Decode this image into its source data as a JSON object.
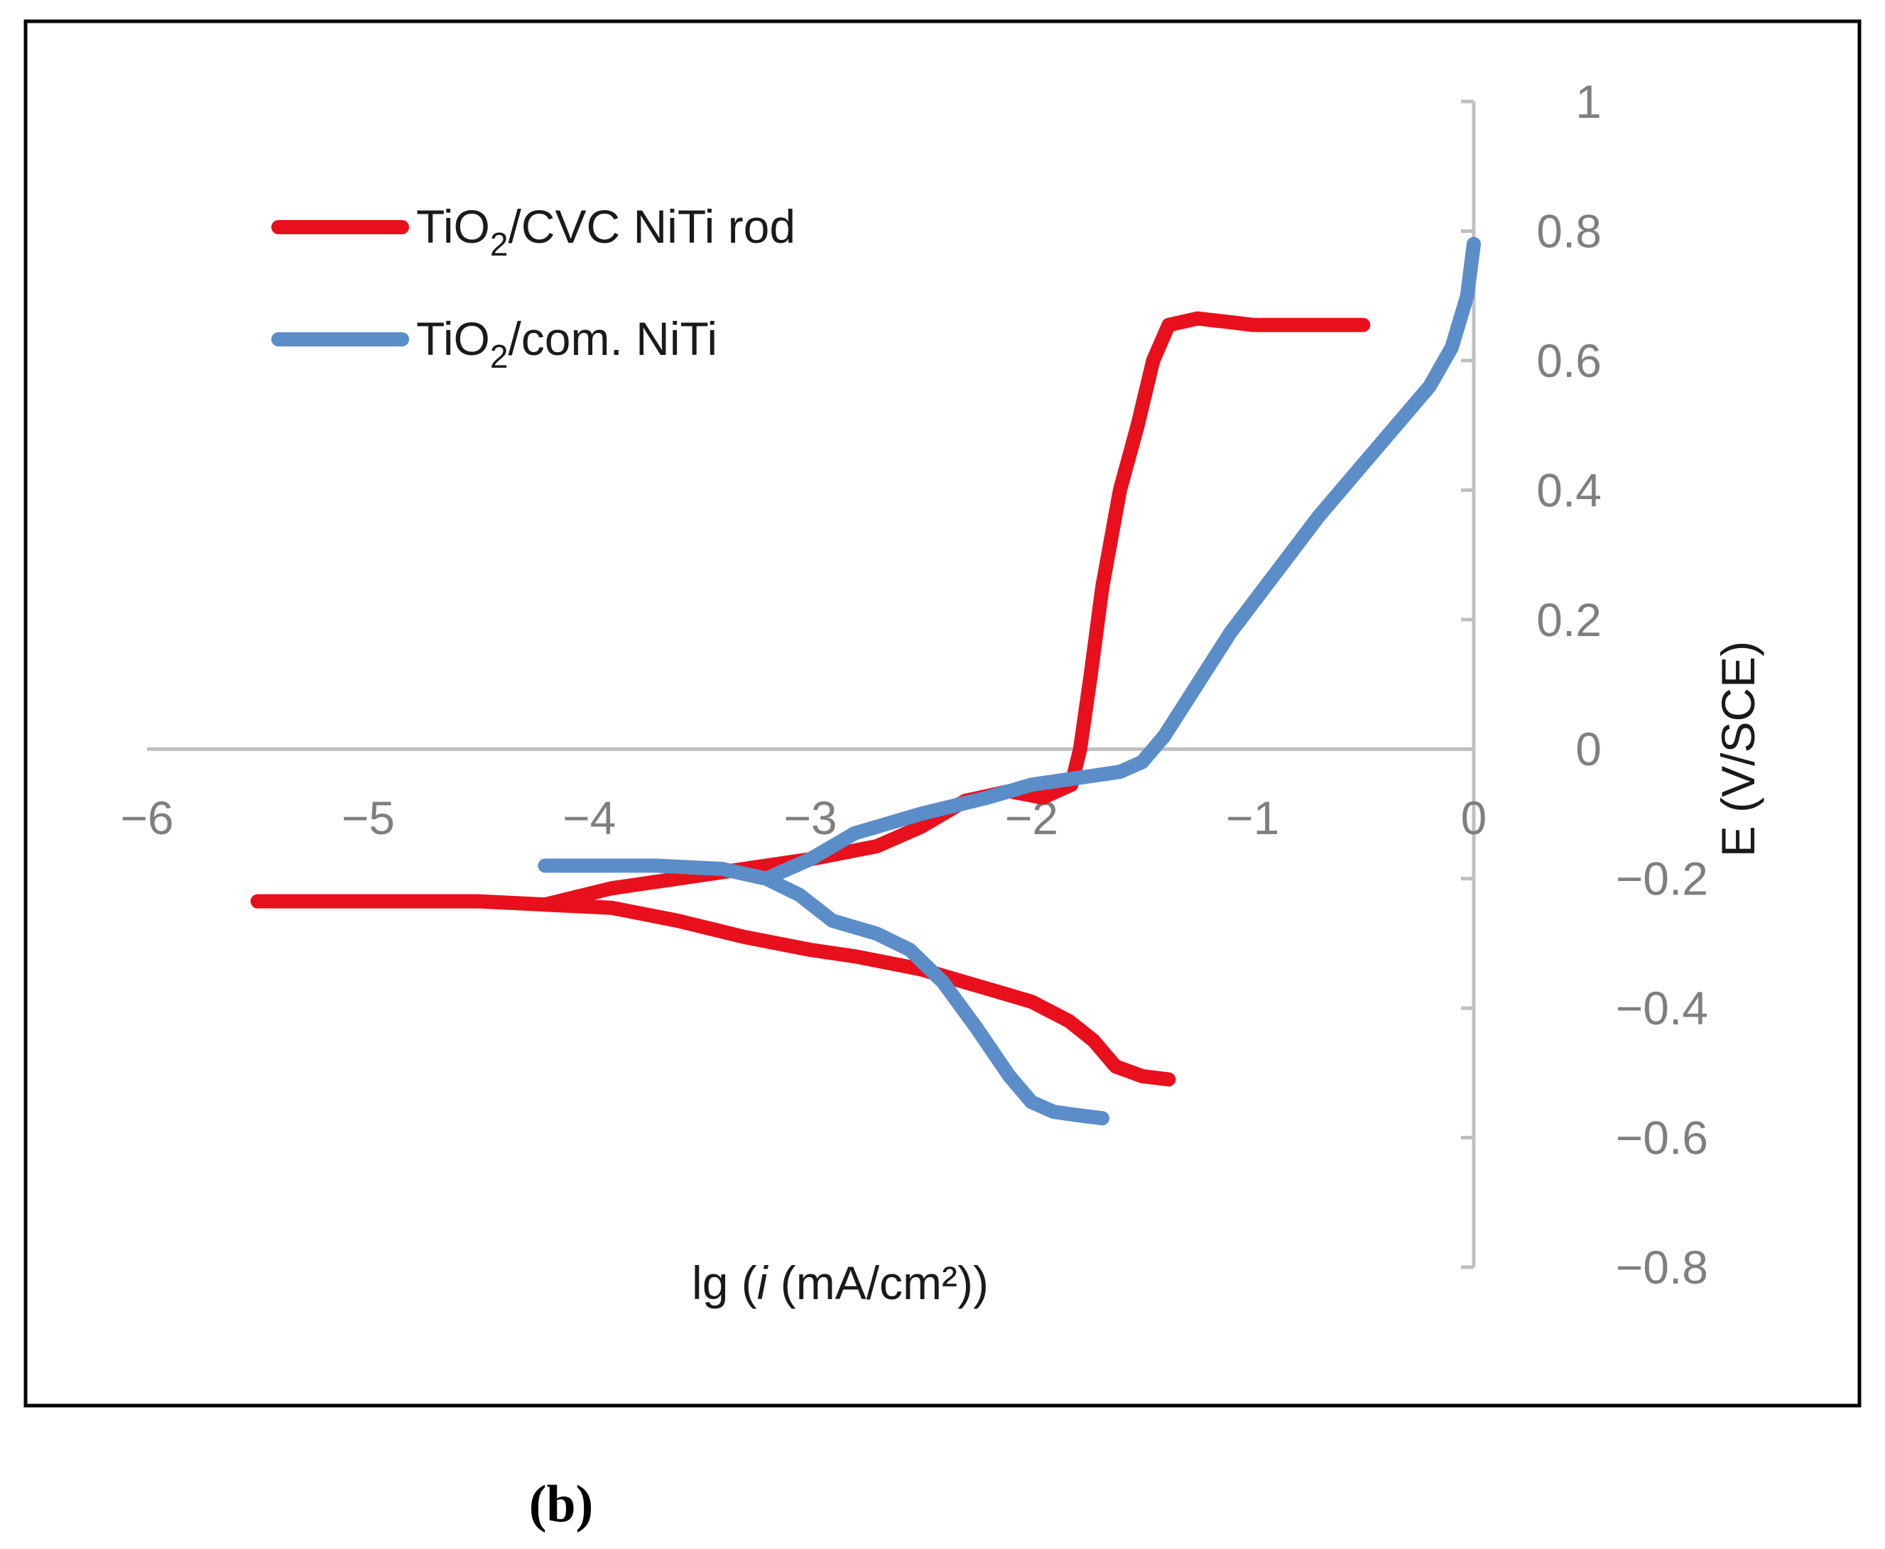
{
  "chart_data": {
    "type": "line",
    "xlabel": {
      "prefix": "lg (",
      "italic": "i",
      "suffix": " (mA/cm²))"
    },
    "ylabel": "E (V/SCE)",
    "xlim": [
      -6,
      0
    ],
    "ylim": [
      -0.8,
      1
    ],
    "xticks": [
      -6,
      -5,
      -4,
      -3,
      -2,
      -1,
      0
    ],
    "xtick_labels": [
      "−6",
      "−5",
      "−4",
      "−3",
      "−2",
      "−1",
      "0"
    ],
    "yticks": [
      1,
      0.8,
      0.6,
      0.4,
      0.2,
      0,
      -0.2,
      -0.4,
      -0.6,
      -0.8
    ],
    "ytick_labels": [
      "1",
      "0.8",
      "0.6",
      "0.4",
      "0.2",
      "0",
      "−0.2",
      "−0.4",
      "−0.6",
      "−0.8"
    ],
    "legend_position": "top-left",
    "series": [
      {
        "name": "TiO2/CVC NiTi rod",
        "legend": {
          "pre": "TiO",
          "sub": "2",
          "post": "/CVC NiTi rod"
        },
        "color": "#e8101c",
        "points": [
          [
            -1.38,
            -0.51
          ],
          [
            -1.5,
            -0.505
          ],
          [
            -1.62,
            -0.49
          ],
          [
            -1.72,
            -0.45
          ],
          [
            -1.83,
            -0.42
          ],
          [
            -2.0,
            -0.39
          ],
          [
            -2.2,
            -0.37
          ],
          [
            -2.5,
            -0.34
          ],
          [
            -2.8,
            -0.32
          ],
          [
            -3.0,
            -0.31
          ],
          [
            -3.3,
            -0.29
          ],
          [
            -3.6,
            -0.265
          ],
          [
            -3.9,
            -0.245
          ],
          [
            -4.2,
            -0.24
          ],
          [
            -4.5,
            -0.235
          ],
          [
            -5.0,
            -0.235
          ],
          [
            -5.5,
            -0.235
          ]
        ],
        "points2": [
          [
            -4.2,
            -0.24
          ],
          [
            -3.9,
            -0.215
          ],
          [
            -3.6,
            -0.2
          ],
          [
            -3.3,
            -0.185
          ],
          [
            -3.0,
            -0.17
          ],
          [
            -2.7,
            -0.15
          ],
          [
            -2.5,
            -0.12
          ],
          [
            -2.3,
            -0.08
          ],
          [
            -2.1,
            -0.065
          ],
          [
            -1.95,
            -0.075
          ],
          [
            -1.82,
            -0.055
          ],
          [
            -1.78,
            0.0
          ],
          [
            -1.73,
            0.12
          ],
          [
            -1.68,
            0.25
          ],
          [
            -1.6,
            0.4
          ],
          [
            -1.52,
            0.5
          ],
          [
            -1.45,
            0.6
          ],
          [
            -1.38,
            0.655
          ],
          [
            -1.25,
            0.665
          ],
          [
            -1.12,
            0.66
          ],
          [
            -1.0,
            0.655
          ],
          [
            -0.8,
            0.655
          ],
          [
            -0.5,
            0.655
          ]
        ]
      },
      {
        "name": "TiO2/com. NiTi",
        "legend": {
          "pre": "TiO",
          "sub": "2",
          "post": "/com. NiTi"
        },
        "color": "#5b8dc8",
        "points": [
          [
            -1.68,
            -0.57
          ],
          [
            -1.8,
            -0.565
          ],
          [
            -1.9,
            -0.56
          ],
          [
            -2.0,
            -0.545
          ],
          [
            -2.1,
            -0.505
          ],
          [
            -2.25,
            -0.43
          ],
          [
            -2.4,
            -0.36
          ],
          [
            -2.55,
            -0.31
          ],
          [
            -2.7,
            -0.285
          ],
          [
            -2.9,
            -0.265
          ],
          [
            -3.05,
            -0.225
          ],
          [
            -3.2,
            -0.2
          ],
          [
            -3.4,
            -0.185
          ],
          [
            -3.7,
            -0.18
          ],
          [
            -4.0,
            -0.18
          ],
          [
            -4.2,
            -0.18
          ]
        ],
        "points2": [
          [
            -3.2,
            -0.2
          ],
          [
            -3.0,
            -0.17
          ],
          [
            -2.8,
            -0.13
          ],
          [
            -2.5,
            -0.1
          ],
          [
            -2.2,
            -0.075
          ],
          [
            -2.0,
            -0.055
          ],
          [
            -1.8,
            -0.045
          ],
          [
            -1.6,
            -0.035
          ],
          [
            -1.5,
            -0.02
          ],
          [
            -1.4,
            0.02
          ],
          [
            -1.25,
            0.1
          ],
          [
            -1.1,
            0.18
          ],
          [
            -0.9,
            0.27
          ],
          [
            -0.7,
            0.36
          ],
          [
            -0.5,
            0.44
          ],
          [
            -0.35,
            0.5
          ],
          [
            -0.2,
            0.56
          ],
          [
            -0.1,
            0.62
          ],
          [
            -0.03,
            0.7
          ],
          [
            0.0,
            0.78
          ]
        ]
      }
    ]
  },
  "caption": "(b)"
}
